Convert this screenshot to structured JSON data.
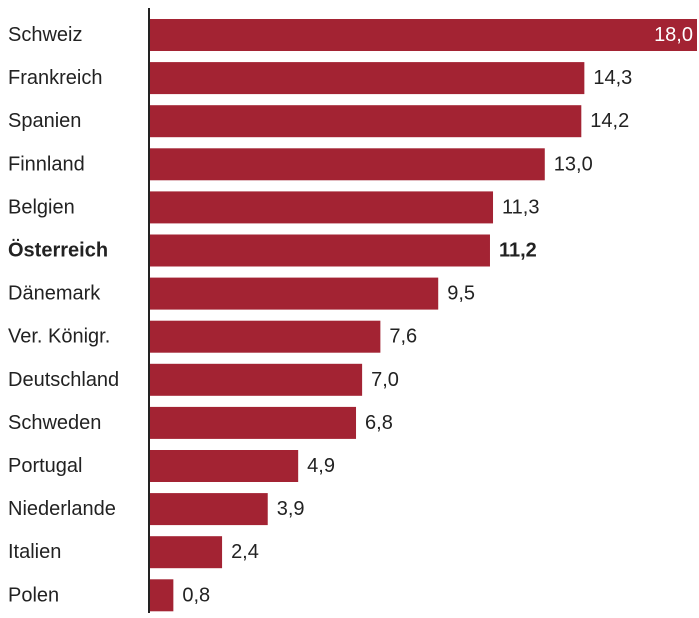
{
  "chart_data": {
    "type": "bar",
    "orientation": "horizontal",
    "categories": [
      "Schweiz",
      "Frankreich",
      "Spanien",
      "Finnland",
      "Belgien",
      "Österreich",
      "Dänemark",
      "Ver. Königr.",
      "Deutschland",
      "Schweden",
      "Portugal",
      "Niederlande",
      "Italien",
      "Polen"
    ],
    "values": [
      18.0,
      14.3,
      14.2,
      13.0,
      11.3,
      11.2,
      9.5,
      7.6,
      7.0,
      6.8,
      4.9,
      3.9,
      2.4,
      0.8
    ],
    "value_labels": [
      "18,0",
      "14,3",
      "14,2",
      "13,0",
      "11,3",
      "11,2",
      "9,5",
      "7,6",
      "7,0",
      "6,8",
      "4,9",
      "3,9",
      "2,4",
      "0,8"
    ],
    "highlighted_category": "Österreich",
    "title": "",
    "xlabel": "",
    "ylabel": "",
    "xlim": [
      0,
      18.0
    ],
    "grid": false,
    "legend": "none"
  },
  "colors": {
    "bar": "#a32333",
    "text": "#222222",
    "axis": "#222222",
    "label_inside": "#ffffff"
  }
}
